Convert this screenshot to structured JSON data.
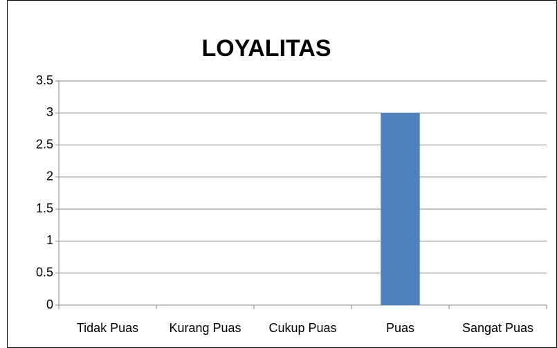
{
  "chart_data": {
    "type": "bar",
    "title": "LOYALITAS",
    "categories": [
      "Tidak Puas",
      "Kurang Puas",
      "Cukup Puas",
      "Puas",
      "Sangat Puas"
    ],
    "values": [
      0,
      0,
      0,
      3,
      0
    ],
    "color": "#4f81bd",
    "ylim": [
      0,
      3.5
    ],
    "yticks": [
      0,
      0.5,
      1,
      1.5,
      2,
      2.5,
      3,
      3.5
    ],
    "grid": true
  }
}
